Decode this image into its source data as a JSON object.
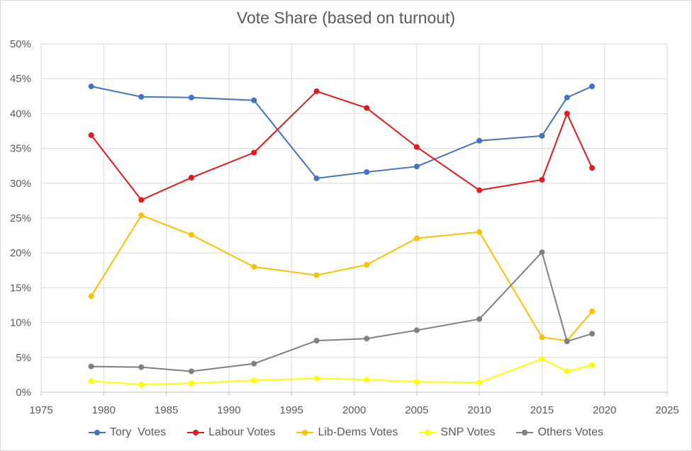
{
  "chart_data": {
    "type": "line",
    "title": "Vote Share (based on turnout)",
    "xlabel": "",
    "ylabel": "",
    "xlim": [
      1975,
      2025
    ],
    "ylim": [
      0,
      0.5
    ],
    "xticks": [
      1975,
      1980,
      1985,
      1990,
      1995,
      2000,
      2005,
      2010,
      2015,
      2020,
      2025
    ],
    "yticks": [
      "0%",
      "5%",
      "10%",
      "15%",
      "20%",
      "25%",
      "30%",
      "35%",
      "40%",
      "45%",
      "50%"
    ],
    "grid": true,
    "legend_position": "bottom",
    "x": [
      1979,
      1983,
      1987,
      1992,
      1997,
      2001,
      2005,
      2010,
      2015,
      2017,
      2019
    ],
    "series": [
      {
        "name": "Tory  Votes",
        "color": "#4472c4",
        "values": [
          0.439,
          0.424,
          0.423,
          0.419,
          0.307,
          0.316,
          0.324,
          0.361,
          0.368,
          0.423,
          0.439
        ]
      },
      {
        "name": "Labour Votes",
        "color": "#e41a1c",
        "values": [
          0.369,
          0.276,
          0.308,
          0.344,
          0.432,
          0.408,
          0.352,
          0.29,
          0.305,
          0.4,
          0.322
        ]
      },
      {
        "name": "Lib-Dems Votes",
        "color": "#ffc000",
        "values": [
          0.138,
          0.254,
          0.226,
          0.18,
          0.168,
          0.183,
          0.221,
          0.23,
          0.079,
          0.074,
          0.116
        ]
      },
      {
        "name": "SNP Votes",
        "color": "#ffff00",
        "values": [
          0.016,
          0.011,
          0.013,
          0.017,
          0.02,
          0.018,
          0.015,
          0.014,
          0.048,
          0.03,
          0.039
        ]
      },
      {
        "name": "Others Votes",
        "color": "#808080",
        "values": [
          0.037,
          0.036,
          0.03,
          0.041,
          0.074,
          0.077,
          0.089,
          0.105,
          0.201,
          0.073,
          0.084
        ]
      }
    ]
  }
}
